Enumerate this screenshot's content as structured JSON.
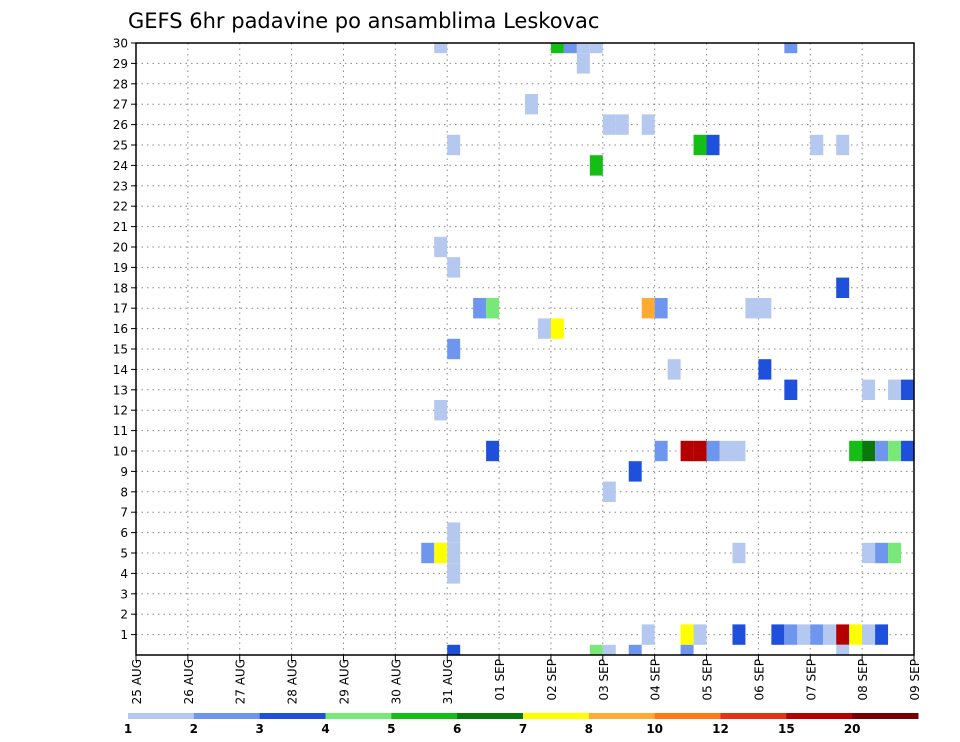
{
  "chart_data": {
    "type": "heatmap",
    "title": "GEFS 6hr padavine po ansamblima Leskovac",
    "x_tick_labels": [
      "25 AUG",
      "26 AUG",
      "27 AUG",
      "28 AUG",
      "29 AUG",
      "30 AUG",
      "31 AUG",
      "01 SEP",
      "02 SEP",
      "03 SEP",
      "04 SEP",
      "05 SEP",
      "06 SEP",
      "07 SEP",
      "08 SEP",
      "09 SEP"
    ],
    "y_tick_labels": [
      1,
      2,
      3,
      4,
      5,
      6,
      7,
      8,
      9,
      10,
      11,
      12,
      13,
      14,
      15,
      16,
      17,
      18,
      19,
      20,
      21,
      22,
      23,
      24,
      25,
      26,
      27,
      28,
      29,
      30
    ],
    "ylim": [
      0,
      30
    ],
    "x_steps_per_day": 4,
    "grid": true,
    "colorbar_labels": [
      "1",
      "2",
      "3",
      "4",
      "5",
      "6",
      "7",
      "8",
      "10",
      "12",
      "15",
      "20"
    ],
    "colorbar_colors": [
      "#b4c8f0",
      "#6e96ee",
      "#1e50dc",
      "#78e878",
      "#14be14",
      "#0a780a",
      "#ffff00",
      "#ffaa32",
      "#ff7814",
      "#e63214",
      "#b40000",
      "#780000"
    ],
    "cells_note_units": "cell = [member, step index from 25 AUG 00z (6h), colour class]",
    "cells": [
      [
        30,
        23,
        1
      ],
      [
        30,
        32,
        5
      ],
      [
        30,
        33,
        2
      ],
      [
        30,
        34,
        1
      ],
      [
        30,
        35,
        1
      ],
      [
        30,
        50,
        2
      ],
      [
        29,
        34,
        1
      ],
      [
        27,
        30,
        1
      ],
      [
        26,
        36,
        1
      ],
      [
        26,
        37,
        1
      ],
      [
        26,
        39,
        1
      ],
      [
        25,
        24,
        1
      ],
      [
        25,
        43,
        5
      ],
      [
        25,
        44,
        3
      ],
      [
        25,
        52,
        1
      ],
      [
        25,
        54,
        1
      ],
      [
        24,
        35,
        5
      ],
      [
        20,
        23,
        1
      ],
      [
        19,
        24,
        1
      ],
      [
        18,
        54,
        3
      ],
      [
        17,
        26,
        2
      ],
      [
        17,
        27,
        4
      ],
      [
        17,
        39,
        8
      ],
      [
        17,
        40,
        2
      ],
      [
        17,
        47,
        1
      ],
      [
        17,
        48,
        1
      ],
      [
        16,
        31,
        1
      ],
      [
        16,
        32,
        7
      ],
      [
        15,
        24,
        2
      ],
      [
        14,
        41,
        1
      ],
      [
        14,
        48,
        3
      ],
      [
        13,
        50,
        3
      ],
      [
        13,
        56,
        1
      ],
      [
        13,
        58,
        1
      ],
      [
        13,
        59,
        3
      ],
      [
        12,
        23,
        1
      ],
      [
        10,
        27,
        3
      ],
      [
        10,
        40,
        2
      ],
      [
        10,
        42,
        11
      ],
      [
        10,
        43,
        11
      ],
      [
        10,
        44,
        2
      ],
      [
        10,
        45,
        1
      ],
      [
        10,
        46,
        1
      ],
      [
        10,
        55,
        5
      ],
      [
        10,
        56,
        6
      ],
      [
        10,
        57,
        2
      ],
      [
        10,
        58,
        4
      ],
      [
        10,
        59,
        3
      ],
      [
        9,
        38,
        3
      ],
      [
        8,
        36,
        1
      ],
      [
        6,
        24,
        1
      ],
      [
        5,
        22,
        2
      ],
      [
        5,
        23,
        7
      ],
      [
        5,
        24,
        1
      ],
      [
        5,
        46,
        1
      ],
      [
        5,
        56,
        1
      ],
      [
        5,
        57,
        2
      ],
      [
        5,
        58,
        4
      ],
      [
        4,
        24,
        1
      ],
      [
        1,
        39,
        1
      ],
      [
        1,
        42,
        7
      ],
      [
        1,
        43,
        1
      ],
      [
        1,
        46,
        3
      ],
      [
        1,
        49,
        3
      ],
      [
        1,
        50,
        2
      ],
      [
        1,
        51,
        1
      ],
      [
        1,
        52,
        2
      ],
      [
        1,
        53,
        1
      ],
      [
        1,
        54,
        11
      ],
      [
        1,
        55,
        7
      ],
      [
        1,
        56,
        1
      ],
      [
        1,
        57,
        3
      ],
      [
        0,
        24,
        3
      ],
      [
        0,
        35,
        4
      ],
      [
        0,
        36,
        1
      ],
      [
        0,
        38,
        2
      ],
      [
        0,
        42,
        2
      ],
      [
        0,
        54,
        1
      ]
    ]
  }
}
